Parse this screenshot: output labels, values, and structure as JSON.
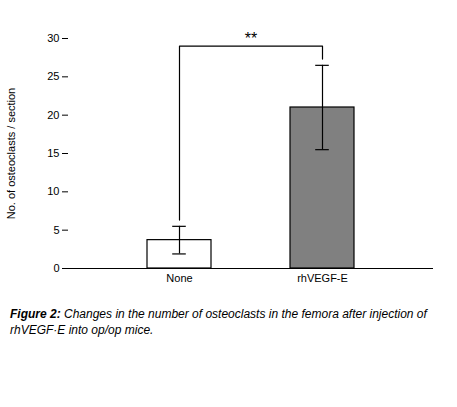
{
  "chart_data": {
    "type": "bar",
    "categories": [
      "None",
      "rhVEGF-E"
    ],
    "values": [
      3.7,
      21.0
    ],
    "errors": [
      1.8,
      5.5
    ],
    "colors": [
      "white",
      "gray"
    ],
    "ylabel": "No. of osteoclasts / section",
    "ylim": [
      0,
      30
    ],
    "yticks": [
      0,
      5,
      10,
      15,
      20,
      25,
      30
    ],
    "annotations": [
      {
        "text": "**",
        "between": [
          "None",
          "rhVEGF-E"
        ]
      }
    ],
    "caption": [
      "Figure 2:",
      "Changes in the number of osteoclasts in the femora after injection of rhVEGF·E into op/op mice."
    ]
  }
}
